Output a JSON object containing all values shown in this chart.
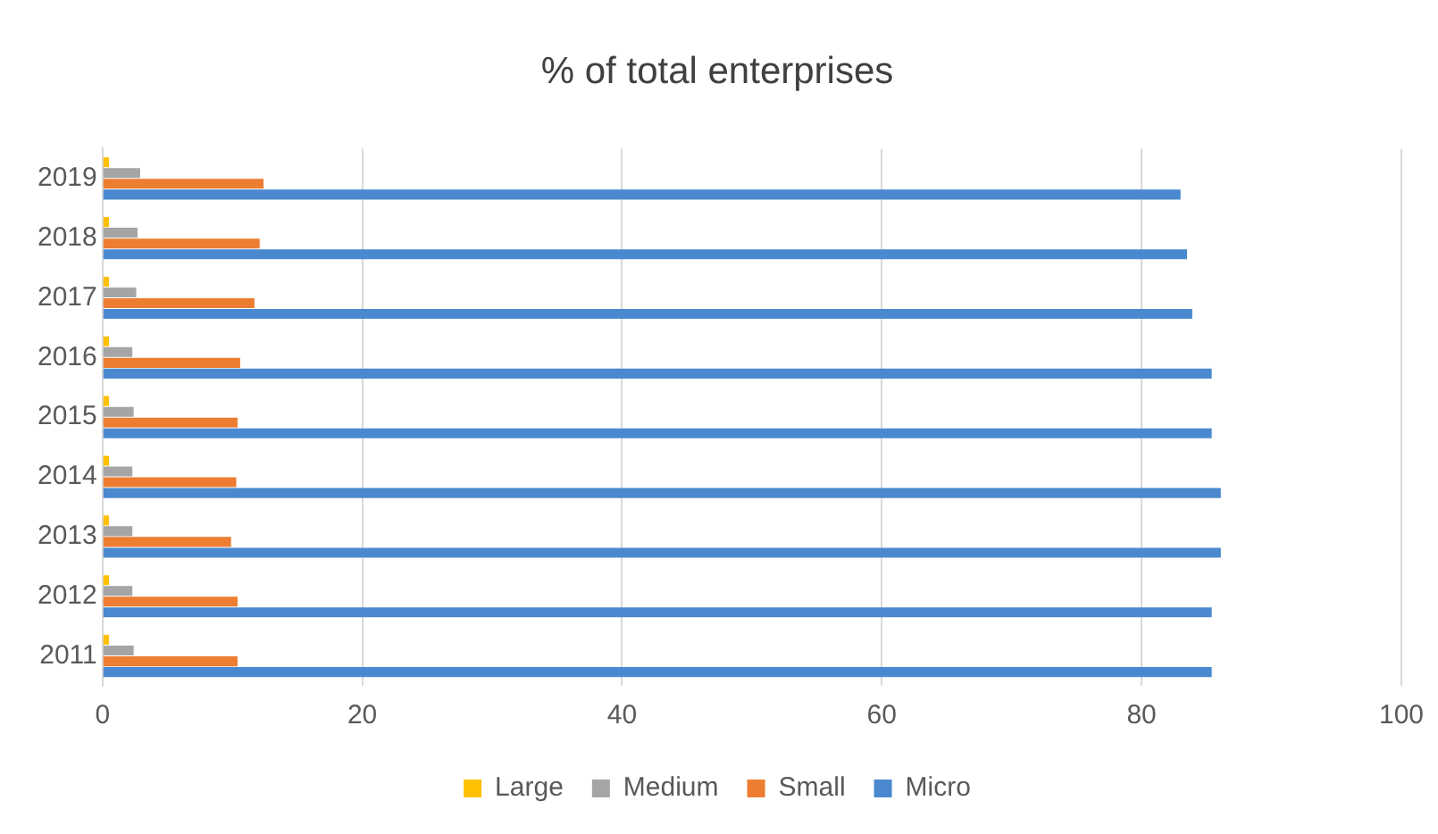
{
  "chart_data": {
    "type": "bar",
    "orientation": "horizontal",
    "title": "% of total enterprises",
    "categories": [
      "2019",
      "2018",
      "2017",
      "2016",
      "2015",
      "2014",
      "2013",
      "2012",
      "2011"
    ],
    "series": [
      {
        "name": "Large",
        "color": "#ffc000",
        "values": [
          0.5,
          0.5,
          0.5,
          0.5,
          0.5,
          0.5,
          0.5,
          0.5,
          0.5
        ]
      },
      {
        "name": "Medium",
        "color": "#a5a5a5",
        "values": [
          2.9,
          2.7,
          2.6,
          2.3,
          2.4,
          2.3,
          2.3,
          2.3,
          2.4
        ]
      },
      {
        "name": "Small",
        "color": "#ed7d31",
        "values": [
          12.4,
          12.1,
          11.7,
          10.6,
          10.4,
          10.3,
          9.9,
          10.4,
          10.4
        ]
      },
      {
        "name": "Micro",
        "color": "#4a89cf",
        "values": [
          83.0,
          83.5,
          83.9,
          85.4,
          85.4,
          86.1,
          86.1,
          85.4,
          85.4
        ]
      }
    ],
    "xlim": [
      0,
      100
    ],
    "xticks": [
      0,
      20,
      40,
      60,
      80,
      100
    ],
    "grid": "x",
    "legend": "bottom"
  }
}
